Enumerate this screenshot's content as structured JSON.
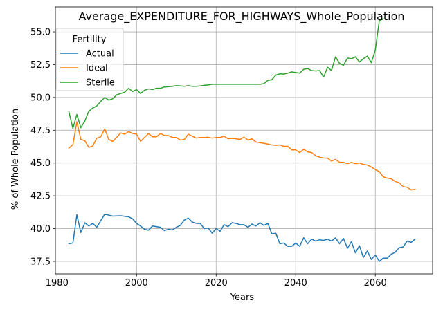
{
  "chart_data": {
    "type": "line",
    "title": "Average_EXPENDITURE_FOR_HIGHWAYS_Whole_Population",
    "xlabel": "Years",
    "ylabel": "% of Whole Population",
    "xlim": [
      1979.6,
      2074.4
    ],
    "ylim": [
      36.55,
      56.9
    ],
    "xticks": [
      1980,
      2000,
      2020,
      2040,
      2060
    ],
    "xtick_labels": [
      "1980",
      "2000",
      "2020",
      "2040",
      "2060"
    ],
    "yticks": [
      37.5,
      40.0,
      42.5,
      45.0,
      47.5,
      50.0,
      52.5,
      55.0
    ],
    "ytick_labels": [
      "37.5",
      "40.0",
      "42.5",
      "45.0",
      "47.5",
      "50.0",
      "52.5",
      "55.0"
    ],
    "grid": true,
    "legend": {
      "title": "Fertility",
      "position": "upper-left"
    },
    "series": [
      {
        "name": "Actual",
        "color": "#1f77b4",
        "x": [
          1983,
          1984,
          1985,
          1986,
          1987,
          1988,
          1989,
          1990,
          1992,
          1994,
          1996,
          1998,
          1999,
          2000,
          2001,
          2002,
          2003,
          2004,
          2006,
          2007,
          2008,
          2009,
          2010,
          2011,
          2012,
          2013,
          2014,
          2015,
          2016,
          2017,
          2018,
          2019,
          2020,
          2021,
          2022,
          2023,
          2024,
          2025,
          2026,
          2027,
          2028,
          2029,
          2030,
          2031,
          2032,
          2033,
          2034,
          2035,
          2036,
          2037,
          2038,
          2039,
          2040,
          2041,
          2042,
          2043,
          2044,
          2045,
          2046,
          2047,
          2048,
          2049,
          2050,
          2051,
          2052,
          2053,
          2054,
          2055,
          2056,
          2057,
          2058,
          2059,
          2060,
          2061,
          2062,
          2063,
          2064,
          2065,
          2066,
          2067,
          2068,
          2069,
          2070
        ],
        "values": [
          38.85,
          38.9,
          41.05,
          39.7,
          40.45,
          40.2,
          40.4,
          40.1,
          41.1,
          40.95,
          40.98,
          40.9,
          40.75,
          40.4,
          40.2,
          39.95,
          39.88,
          40.2,
          40.1,
          39.85,
          39.95,
          39.9,
          40.1,
          40.25,
          40.65,
          40.8,
          40.5,
          40.4,
          40.4,
          40.0,
          40.05,
          39.65,
          40.0,
          39.8,
          40.3,
          40.15,
          40.45,
          40.4,
          40.3,
          40.3,
          40.1,
          40.35,
          40.2,
          40.45,
          40.25,
          40.4,
          39.6,
          39.65,
          38.85,
          38.9,
          38.65,
          38.65,
          38.9,
          38.65,
          39.3,
          38.85,
          39.2,
          39.05,
          39.15,
          39.1,
          39.2,
          39.05,
          39.3,
          38.85,
          39.25,
          38.5,
          39.0,
          38.15,
          38.7,
          37.8,
          38.3,
          37.65,
          38.0,
          37.5,
          37.75,
          37.75,
          38.05,
          38.2,
          38.55,
          38.6,
          39.05,
          38.95,
          39.2
        ]
      },
      {
        "name": "Ideal",
        "color": "#ff7f0e",
        "x": [
          1983,
          1984,
          1985,
          1986,
          1987,
          1988,
          1989,
          1990,
          1991,
          1992,
          1993,
          1994,
          1995,
          1996,
          1997,
          1998,
          1999,
          2000,
          2001,
          2002,
          2003,
          2004,
          2005,
          2006,
          2007,
          2008,
          2009,
          2010,
          2011,
          2012,
          2013,
          2014,
          2015,
          2016,
          2017,
          2018,
          2019,
          2020,
          2021,
          2022,
          2023,
          2024,
          2025,
          2026,
          2027,
          2028,
          2029,
          2030,
          2031,
          2032,
          2033,
          2034,
          2035,
          2036,
          2037,
          2038,
          2039,
          2040,
          2041,
          2042,
          2043,
          2044,
          2045,
          2046,
          2047,
          2048,
          2049,
          2050,
          2051,
          2052,
          2053,
          2054,
          2055,
          2056,
          2057,
          2058,
          2059,
          2060,
          2061,
          2062,
          2063,
          2064,
          2065,
          2066,
          2067,
          2068,
          2069,
          2070
        ],
        "values": [
          46.15,
          46.4,
          48.15,
          46.8,
          46.7,
          46.2,
          46.3,
          46.9,
          47.0,
          47.6,
          46.8,
          46.65,
          46.95,
          47.3,
          47.2,
          47.4,
          47.25,
          47.2,
          46.65,
          46.95,
          47.25,
          47.0,
          47.0,
          47.25,
          47.1,
          47.1,
          46.95,
          46.95,
          46.75,
          46.8,
          47.2,
          47.05,
          46.9,
          46.95,
          46.95,
          46.97,
          46.9,
          46.95,
          46.95,
          47.05,
          46.85,
          46.88,
          46.85,
          46.8,
          46.98,
          46.75,
          46.85,
          46.6,
          46.55,
          46.5,
          46.45,
          46.38,
          46.35,
          46.38,
          46.28,
          46.28,
          46.0,
          46.0,
          45.8,
          46.05,
          45.85,
          45.8,
          45.55,
          45.45,
          45.38,
          45.38,
          45.15,
          45.28,
          45.05,
          45.05,
          44.95,
          45.05,
          44.95,
          45.0,
          44.9,
          44.85,
          44.7,
          44.5,
          44.35,
          43.95,
          43.85,
          43.8,
          43.6,
          43.5,
          43.2,
          43.15,
          42.95,
          43.0
        ]
      },
      {
        "name": "Sterile",
        "color": "#2ca02c",
        "x": [
          1983,
          1984,
          1985,
          1986,
          1987,
          1988,
          1989,
          1990,
          1991,
          1992,
          1993,
          1994,
          1995,
          1996,
          1997,
          1998,
          1999,
          2000,
          2001,
          2002,
          2003,
          2004,
          2005,
          2006,
          2007,
          2008,
          2009,
          2010,
          2011,
          2012,
          2013,
          2014,
          2015,
          2016,
          2017,
          2018,
          2019,
          2020,
          2022,
          2024,
          2026,
          2028,
          2030,
          2031,
          2032,
          2033,
          2034,
          2035,
          2036,
          2037,
          2038,
          2039,
          2040,
          2041,
          2042,
          2043,
          2044,
          2045,
          2046,
          2047,
          2048,
          2049,
          2050,
          2051,
          2052,
          2053,
          2054,
          2055,
          2056,
          2057,
          2058,
          2059,
          2060,
          2061,
          2062
        ],
        "values": [
          48.9,
          47.65,
          48.7,
          47.7,
          48.2,
          48.95,
          49.2,
          49.35,
          49.7,
          50.0,
          49.8,
          49.9,
          50.2,
          50.3,
          50.4,
          50.7,
          50.45,
          50.6,
          50.3,
          50.55,
          50.65,
          50.6,
          50.7,
          50.7,
          50.8,
          50.82,
          50.85,
          50.9,
          50.88,
          50.85,
          50.9,
          50.85,
          50.85,
          50.88,
          50.92,
          50.95,
          51.0,
          51.0,
          51.0,
          51.0,
          51.0,
          51.0,
          51.0,
          51.0,
          51.05,
          51.3,
          51.35,
          51.7,
          51.8,
          51.78,
          51.85,
          51.95,
          51.9,
          51.85,
          52.15,
          52.2,
          52.05,
          52.02,
          52.05,
          51.55,
          52.3,
          52.05,
          53.1,
          52.6,
          52.45,
          53.0,
          52.95,
          53.1,
          52.7,
          52.95,
          53.15,
          52.65,
          53.6,
          55.85,
          56.0
        ]
      }
    ]
  }
}
